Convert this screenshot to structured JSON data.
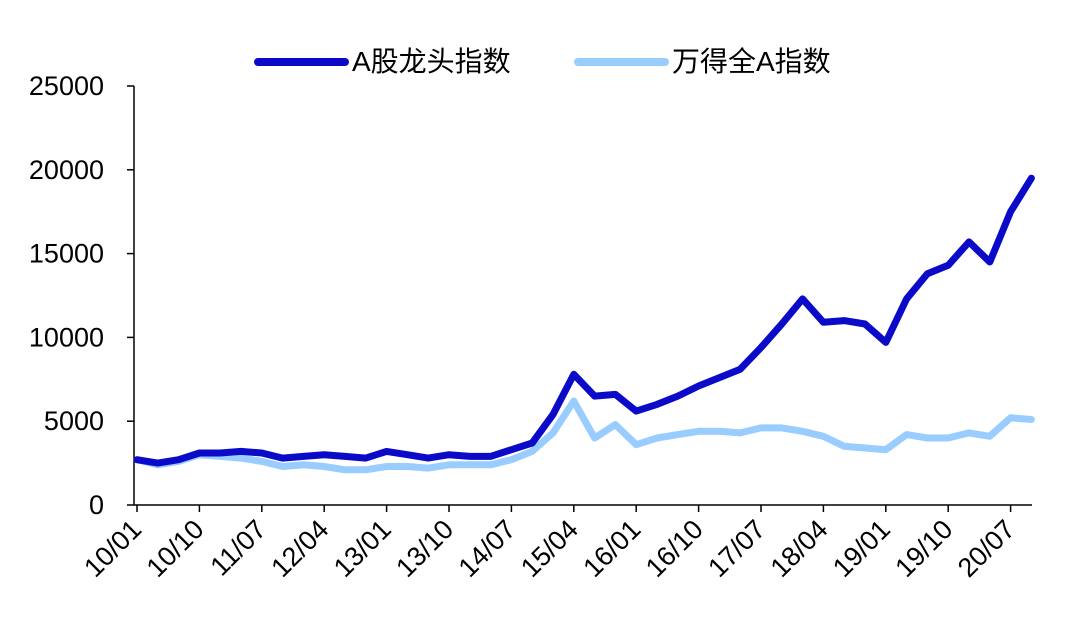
{
  "chart_data": {
    "type": "line",
    "title": "",
    "xlabel": "",
    "ylabel": "",
    "ylim": [
      0,
      25000
    ],
    "yticks": [
      0,
      5000,
      10000,
      15000,
      20000,
      25000
    ],
    "xticks": [
      "10/01",
      "10/10",
      "11/07",
      "12/04",
      "13/01",
      "13/10",
      "14/07",
      "15/04",
      "16/01",
      "16/10",
      "17/07",
      "18/04",
      "19/01",
      "19/10",
      "20/07"
    ],
    "grid": false,
    "legend_position": "top",
    "x": [
      "10/01",
      "10/04",
      "10/07",
      "10/10",
      "11/01",
      "11/04",
      "11/07",
      "11/10",
      "12/01",
      "12/04",
      "12/07",
      "12/10",
      "13/01",
      "13/04",
      "13/07",
      "13/10",
      "14/01",
      "14/04",
      "14/07",
      "14/10",
      "15/01",
      "15/04",
      "15/07",
      "15/10",
      "16/01",
      "16/04",
      "16/07",
      "16/10",
      "17/01",
      "17/04",
      "17/07",
      "17/10",
      "18/01",
      "18/04",
      "18/07",
      "18/10",
      "19/01",
      "19/04",
      "19/07",
      "19/10",
      "20/01",
      "20/04",
      "20/07",
      "20/10"
    ],
    "series": [
      {
        "name": "A股龙头指数",
        "color": "#0a0ac8",
        "values": [
          2700,
          2500,
          2700,
          3100,
          3100,
          3200,
          3100,
          2800,
          2900,
          3000,
          2900,
          2800,
          3200,
          3000,
          2800,
          3000,
          2900,
          2900,
          3300,
          3700,
          5400,
          7800,
          6500,
          6600,
          5600,
          6000,
          6500,
          7100,
          7600,
          8100,
          9400,
          10800,
          12300,
          10900,
          11000,
          10800,
          9700,
          12300,
          13800,
          14300,
          15700,
          14500,
          17500,
          19500
        ]
      },
      {
        "name": "万得全A指数",
        "color": "#99ccff",
        "values": [
          2700,
          2400,
          2600,
          3000,
          2900,
          2800,
          2600,
          2300,
          2400,
          2300,
          2100,
          2100,
          2300,
          2300,
          2200,
          2400,
          2400,
          2400,
          2700,
          3200,
          4300,
          6200,
          4000,
          4800,
          3600,
          4000,
          4200,
          4400,
          4400,
          4300,
          4600,
          4600,
          4400,
          4100,
          3500,
          3400,
          3300,
          4200,
          4000,
          4000,
          4300,
          4100,
          5200,
          5100
        ]
      }
    ]
  }
}
